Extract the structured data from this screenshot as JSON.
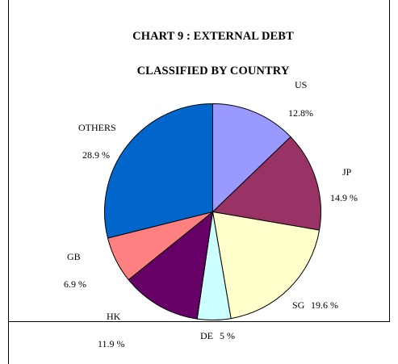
{
  "chart_data": {
    "type": "pie",
    "title": "CHART 9 : EXTERNAL DEBT",
    "subtitle": "CLASSIFIED BY COUNTRY",
    "slices": [
      {
        "name": "US",
        "value": 12.8,
        "name_text": "US",
        "value_text": "12.8%",
        "color": "#9999ff"
      },
      {
        "name": "JP",
        "value": 14.9,
        "name_text": "JP",
        "value_text": "14.9 %",
        "color": "#993366"
      },
      {
        "name": "SG",
        "value": 19.6,
        "name_text": "SG",
        "value_text": "19.6 %",
        "color": "#ffffcc"
      },
      {
        "name": "DE",
        "value": 5.0,
        "name_text": "DE",
        "value_text": "5 %",
        "color": "#ccffff"
      },
      {
        "name": "HK",
        "value": 11.9,
        "name_text": "HK",
        "value_text": "11.9 %",
        "color": "#660066"
      },
      {
        "name": "GB",
        "value": 6.9,
        "name_text": "GB",
        "value_text": "6.9 %",
        "color": "#ff8080"
      },
      {
        "name": "OTHERS",
        "value": 28.9,
        "name_text": "OTHERS",
        "value_text": "28.9 %",
        "color": "#0066cc"
      }
    ],
    "start": "12 o'clock",
    "direction": "clockwise",
    "legend": "none"
  }
}
